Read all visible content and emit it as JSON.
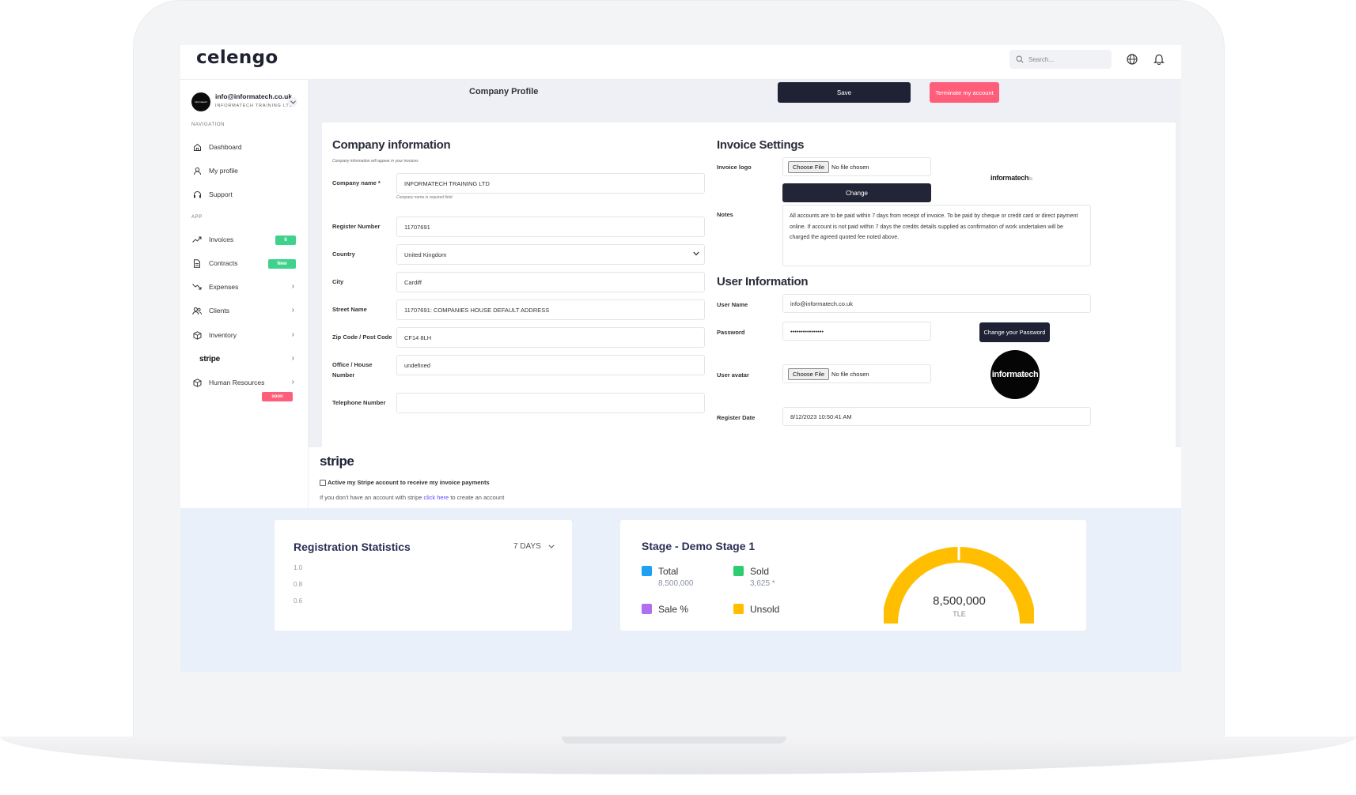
{
  "app": {
    "logo": "celengo"
  },
  "topbar": {
    "search_placeholder": "Search..."
  },
  "account": {
    "email": "info@informatech.co.uk",
    "company": "INFORMATECH TRAINING LTD",
    "avatar_text": "informatech"
  },
  "sidebar": {
    "heading_navigation": "NAVIGATION",
    "heading_app": "APP",
    "nav_items": [
      {
        "label": "Dashboard",
        "icon": "home-icon"
      },
      {
        "label": "My profile",
        "icon": "user-icon"
      },
      {
        "label": "Support",
        "icon": "headset-icon"
      }
    ],
    "app_items": [
      {
        "label": "Invoices",
        "icon": "trend-up-icon",
        "badge": "6"
      },
      {
        "label": "Contracts",
        "icon": "document-icon",
        "badge": "New"
      },
      {
        "label": "Expenses",
        "icon": "trend-down-icon"
      },
      {
        "label": "Clients",
        "icon": "users-icon"
      },
      {
        "label": "Inventory",
        "icon": "box-icon"
      },
      {
        "label": "stripe",
        "icon": ""
      },
      {
        "label": "Human Resources",
        "icon": "box-icon",
        "badge": "soon"
      }
    ]
  },
  "header": {
    "page_title": "Company Profile",
    "save_label": "Save",
    "terminate_label": "Terminate my account"
  },
  "company": {
    "title": "Company information",
    "subtitle": "Company information will appear in your invoices",
    "fields": [
      {
        "label": "Company name *",
        "value": "INFORMATECH TRAINING LTD",
        "hint": "Company name is required field"
      },
      {
        "label": "Register Number",
        "value": "11707691"
      },
      {
        "label": "Country",
        "value": "United Kingdom"
      },
      {
        "label": "City",
        "value": "Cardiff"
      },
      {
        "label": "Street Name",
        "value": "11707691: COMPANIES HOUSE DEFAULT ADDRESS"
      },
      {
        "label": "Zip Code / Post Code",
        "value": "CF14 8LH"
      },
      {
        "label": "Office / House Number",
        "value": "undefined"
      },
      {
        "label": "Telephone Number",
        "value": ""
      }
    ]
  },
  "invoice_settings": {
    "title": "Invoice Settings",
    "logo_label": "Invoice logo",
    "choose_file": "Choose File",
    "no_file": "No file chosen",
    "change_label": "Change",
    "logo_preview_text": "informatech",
    "logo_preview_suffix": "ltc",
    "notes_label": "Notes",
    "notes_value": "All accounts are to be paid within 7 days from receipt of invoice. To be paid by cheque or credit card or direct payment online. If account is not paid within 7 days the credits details supplied as confirmation of work undertaken will be charged the agreed quoted fee noted above."
  },
  "user_info": {
    "title": "User Information",
    "username_label": "User Name",
    "username_value": "info@informatech.co.uk",
    "password_label": "Password",
    "password_value": "••••••••••••••••",
    "change_password_label": "Change your Password",
    "avatar_label": "User avatar",
    "choose_file": "Choose File",
    "no_file": "No file chosen",
    "avatar_text": "informatech",
    "register_date_label": "Register Date",
    "register_date_value": "8/12/2023 10:50:41 AM"
  },
  "stripe": {
    "title": "stripe",
    "checkbox_label": "Active my Stripe account to receive my invoice payments",
    "note_prefix": "If you don't have an account with stripe",
    "note_link": "click here",
    "note_suffix": "to create an account"
  },
  "registration": {
    "title": "Registration Statistics",
    "period": "7 DAYS",
    "ticks": [
      "1.0",
      "0.8",
      "0.6"
    ]
  },
  "stage": {
    "title": "Stage - Demo Stage 1",
    "legend": [
      {
        "label": "Total",
        "value": "8,500,000",
        "color": "#1da1f2"
      },
      {
        "label": "Sold",
        "value": "3,625 *",
        "color": "#2ecc71"
      },
      {
        "label": "Sale %",
        "value": "",
        "color": "#b06ef0"
      },
      {
        "label": "Unsold",
        "value": "",
        "color": "#ffbf00"
      }
    ],
    "donut_value": "8,500,000",
    "donut_unit": "TLE",
    "donut_color": "#ffbf00"
  }
}
